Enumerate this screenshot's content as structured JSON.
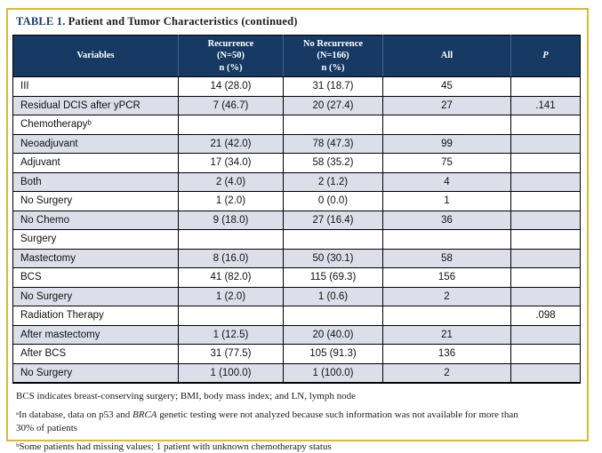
{
  "colors": {
    "header_bg": "#163a64",
    "row_shade": "#dcdfe9",
    "frame_border": "#ddba32",
    "title_accent": "#163a64",
    "grid": "#000000"
  },
  "title": {
    "label": "TABLE 1.",
    "text": "Patient and Tumor Characteristics (continued)"
  },
  "table": {
    "columns": [
      "Variables",
      "Recurrence\n(N=50)\nn (%)",
      "No Recurrence\n(N=166)\nn (%)",
      "All",
      "P"
    ],
    "rows": [
      [
        "III",
        "14 (28.0)",
        "31 (18.7)",
        "45",
        ""
      ],
      [
        "Residual DCIS after yPCR",
        "7 (46.7)",
        "20 (27.4)",
        "27",
        ".141"
      ],
      [
        "Chemotherapyᵇ",
        "",
        "",
        "",
        ""
      ],
      [
        "Neoadjuvant",
        "21 (42.0)",
        "78 (47.3)",
        "99",
        ""
      ],
      [
        "Adjuvant",
        "17 (34.0)",
        "58 (35.2)",
        "75",
        ""
      ],
      [
        "Both",
        "2 (4.0)",
        "2 (1.2)",
        "4",
        ""
      ],
      [
        "No Surgery",
        "1 (2.0)",
        "0 (0.0)",
        "1",
        ""
      ],
      [
        "No Chemo",
        "9 (18.0)",
        "27 (16.4)",
        "36",
        ""
      ],
      [
        "Surgery",
        "",
        "",
        "",
        ""
      ],
      [
        "Mastectomy",
        "8 (16.0)",
        "50 (30.1)",
        "58",
        ""
      ],
      [
        "BCS",
        "41 (82.0)",
        "115 (69.3)",
        "156",
        ""
      ],
      [
        "No Surgery",
        "1 (2.0)",
        "1 (0.6)",
        "2",
        ""
      ],
      [
        "Radiation Therapy",
        "",
        "",
        "",
        ".098"
      ],
      [
        "After mastectomy",
        "1 (12.5)",
        "20 (40.0)",
        "21",
        ""
      ],
      [
        "After BCS",
        "31 (77.5)",
        "105 (91.3)",
        "136",
        ""
      ],
      [
        "No Surgery",
        "1 (100.0)",
        "1 (100.0)",
        "2",
        ""
      ]
    ]
  },
  "footnotes": {
    "abbrev": "BCS indicates breast-conserving surgery; BMI, body mass index; and LN, lymph node",
    "note_a_pre": "ᵃIn database, data on p53 and ",
    "note_a_italic": "BRCA",
    "note_a_post": " genetic testing were not analyzed because such information was not available for more than\n30% of patients",
    "note_b": "ᵇSome patients had missing values; 1 patient with unknown chemotherapy status"
  }
}
